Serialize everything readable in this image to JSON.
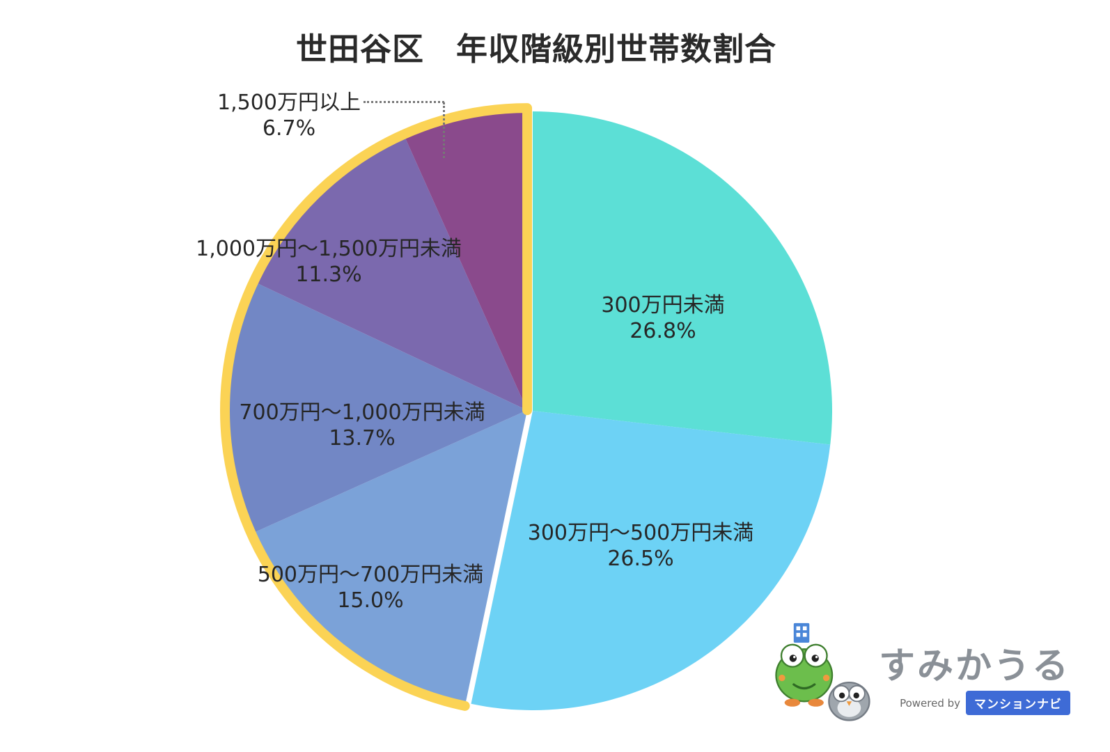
{
  "chart_data": {
    "type": "pie",
    "title": "世田谷区　年収階級別世帯数割合",
    "start_angle_deg": 0,
    "direction": "clockwise",
    "highlight_color": "#FBD355",
    "highlight_note": "slices for 500万円 and above are outlined in yellow as a group",
    "slices": [
      {
        "label": "300万円未満",
        "pct_label": "26.8%",
        "value": 26.8,
        "color": "#5CDFD6",
        "highlighted": false
      },
      {
        "label": "300万円〜500万円未満",
        "pct_label": "26.5%",
        "value": 26.5,
        "color": "#6DD2F5",
        "highlighted": false
      },
      {
        "label": "500万円〜700万円未満",
        "pct_label": "15.0%",
        "value": 15.0,
        "color": "#7BA2D8",
        "highlighted": true
      },
      {
        "label": "700万円〜1,000万円未満",
        "pct_label": "13.7%",
        "value": 13.7,
        "color": "#7287C5",
        "highlighted": true
      },
      {
        "label": "1,000万円〜1,500万円未満",
        "pct_label": "11.3%",
        "value": 11.3,
        "color": "#7B69AE",
        "highlighted": true
      },
      {
        "label": "1,500万円以上",
        "pct_label": "6.7%",
        "value": 6.7,
        "color": "#8A4A8C",
        "highlighted": true
      }
    ]
  },
  "logo": {
    "brand": "すみかうる",
    "brand_color": "#8A9097",
    "powered_by": "Powered by",
    "badge": "マンションナビ",
    "badge_color": "#3E6BD6"
  }
}
